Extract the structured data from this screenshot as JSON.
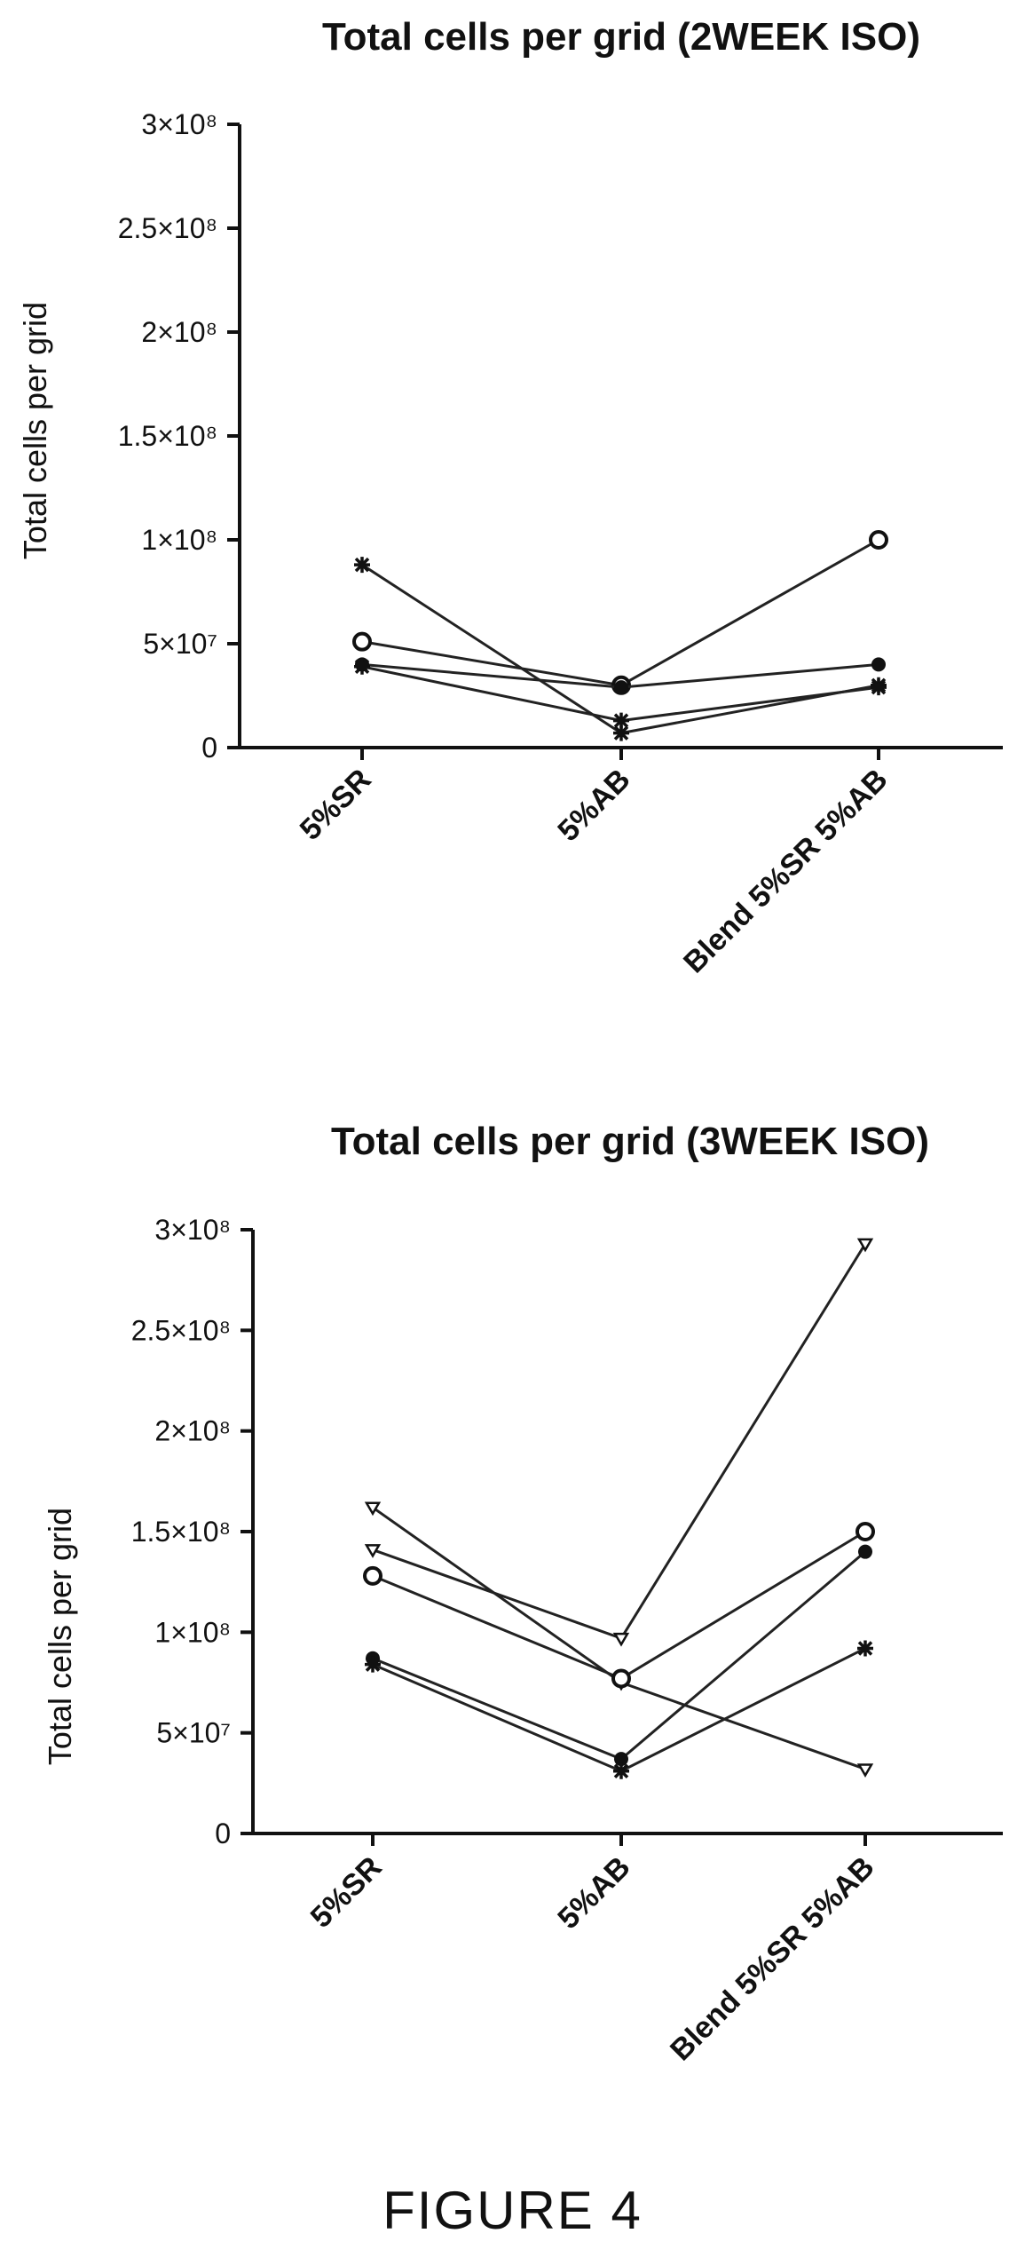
{
  "figure_label": "FIGURE 4",
  "chart_data": [
    {
      "type": "line",
      "title": "Total cells per grid (2WEEK ISO)",
      "ylabel": "Total cells per grid",
      "xlabel": "",
      "categories": [
        "5%SR",
        "5%AB",
        "Blend 5%SR 5%AB"
      ],
      "ylim": [
        0,
        300000000
      ],
      "yticks": [
        {
          "value": 0,
          "label": "0"
        },
        {
          "value": 50000000,
          "label": "5×10⁷"
        },
        {
          "value": 100000000,
          "label": "1×10⁸"
        },
        {
          "value": 150000000,
          "label": "1.5×10⁸"
        },
        {
          "value": 200000000,
          "label": "2×10⁸"
        },
        {
          "value": 250000000,
          "label": "2.5×10⁸"
        },
        {
          "value": 300000000,
          "label": "3×10⁸"
        }
      ],
      "grid": false,
      "series": [
        {
          "values": [
            88000000,
            7000000,
            30000000
          ],
          "marker": "asterisk"
        },
        {
          "values": [
            51000000,
            30000000,
            100000000
          ],
          "marker": "circle"
        },
        {
          "values": [
            40000000,
            29000000,
            40000000
          ],
          "marker": "dot"
        },
        {
          "values": [
            39000000,
            13000000,
            29000000
          ],
          "marker": "asterisk"
        }
      ]
    },
    {
      "type": "line",
      "title": "Total cells per grid (3WEEK ISO)",
      "ylabel": "Total cells per grid",
      "xlabel": "",
      "categories": [
        "5%SR",
        "5%AB",
        "Blend 5%SR 5%AB"
      ],
      "ylim": [
        0,
        300000000
      ],
      "yticks": [
        {
          "value": 0,
          "label": "0"
        },
        {
          "value": 50000000,
          "label": "5×10⁷"
        },
        {
          "value": 100000000,
          "label": "1×10⁸"
        },
        {
          "value": 150000000,
          "label": "1.5×10⁸"
        },
        {
          "value": 200000000,
          "label": "2×10⁸"
        },
        {
          "value": 250000000,
          "label": "2.5×10⁸"
        },
        {
          "value": 300000000,
          "label": "3×10⁸"
        }
      ],
      "grid": false,
      "series": [
        {
          "values": [
            162000000,
            75000000,
            32000000
          ],
          "marker": "triangle"
        },
        {
          "values": [
            141000000,
            97000000,
            293000000
          ],
          "marker": "triangle"
        },
        {
          "values": [
            128000000,
            77000000,
            150000000
          ],
          "marker": "circle"
        },
        {
          "values": [
            87000000,
            37000000,
            140000000
          ],
          "marker": "dot"
        },
        {
          "values": [
            84000000,
            31000000,
            92000000
          ],
          "marker": "asterisk"
        }
      ]
    }
  ]
}
